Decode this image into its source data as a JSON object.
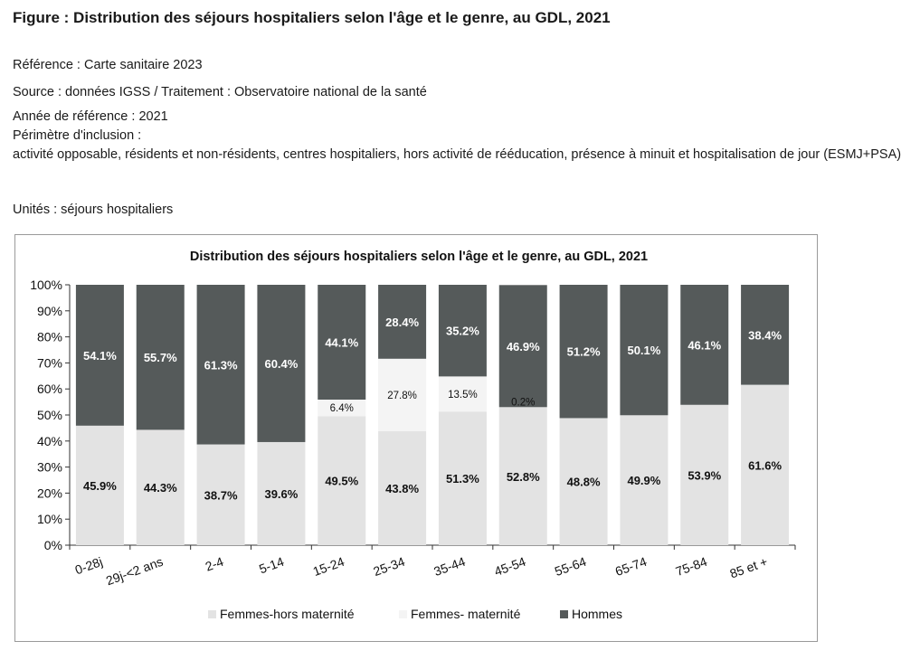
{
  "header": {
    "figure_title": "Figure : Distribution des séjours hospitaliers selon l'âge et le genre, au GDL, 2021",
    "reference": "Référence : Carte sanitaire 2023",
    "source": "Source : données IGSS / Traitement : Observatoire national de la santé",
    "year": "Année de référence : 2021",
    "perimeter_label": "Périmètre d'inclusion :",
    "perimeter_text": "activité opposable, résidents et non-résidents, centres hospitaliers, hors activité de rééducation, présence à minuit et hospitalisation de jour (ESMJ+PSA)",
    "units": "Unités : séjours hospitaliers"
  },
  "colors": {
    "femmes_hors": "#e3e3e3",
    "femmes_mat": "#f4f4f4",
    "hommes": "#555a5a"
  },
  "chart_data": {
    "type": "bar",
    "stacked": true,
    "title": "Distribution des séjours hospitaliers selon l'âge et le genre, au GDL, 2021",
    "categories": [
      "0-28j",
      "29j-<2 ans",
      "2-4",
      "5-14",
      "15-24",
      "25-34",
      "35-44",
      "45-54",
      "55-64",
      "65-74",
      "75-84",
      "85 et +"
    ],
    "series": [
      {
        "name": "Femmes-hors maternité",
        "values": [
          45.9,
          44.3,
          38.7,
          39.6,
          49.5,
          43.8,
          51.3,
          52.8,
          48.8,
          49.9,
          53.9,
          61.6
        ],
        "labels": [
          "45.9%",
          "44.3%",
          "38.7%",
          "39.6%",
          "49.5%",
          "43.8%",
          "51.3%",
          "52.8%",
          "48.8%",
          "49.9%",
          "53.9%",
          "61.6%"
        ]
      },
      {
        "name": "Femmes- maternité",
        "values": [
          0,
          0,
          0,
          0,
          6.4,
          27.8,
          13.5,
          0.2,
          0,
          0,
          0,
          0
        ],
        "labels": [
          "",
          "",
          "",
          "",
          "6.4%",
          "27.8%",
          "13.5%",
          "0.2%",
          "",
          "",
          "",
          ""
        ]
      },
      {
        "name": "Hommes",
        "values": [
          54.1,
          55.7,
          61.3,
          60.4,
          44.1,
          28.4,
          35.2,
          46.9,
          51.2,
          50.1,
          46.1,
          38.4
        ],
        "labels": [
          "54.1%",
          "55.7%",
          "61.3%",
          "60.4%",
          "44.1%",
          "28.4%",
          "35.2%",
          "46.9%",
          "51.2%",
          "50.1%",
          "46.1%",
          "38.4%"
        ]
      }
    ],
    "y_ticks": [
      "0%",
      "10%",
      "20%",
      "30%",
      "40%",
      "50%",
      "60%",
      "70%",
      "80%",
      "90%",
      "100%"
    ],
    "ylim": [
      0,
      100
    ],
    "legend_position": "bottom",
    "grid": false
  }
}
